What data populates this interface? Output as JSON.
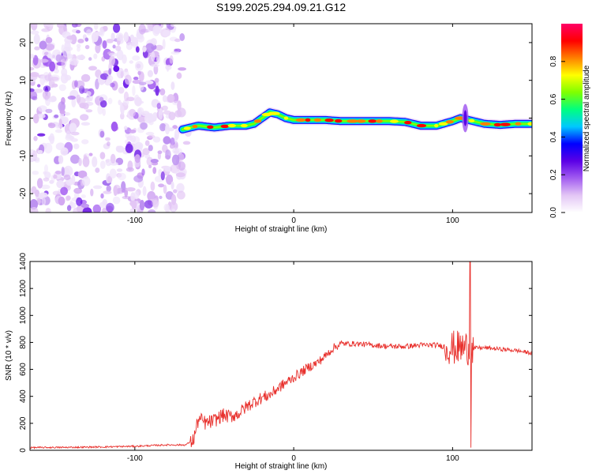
{
  "chart_data": [
    {
      "type": "heatmap",
      "title": "S199.2025.294.09.21.G12",
      "xlabel": "Height of straight line (km)",
      "ylabel": "Frequency (Hz)",
      "xlim": [
        -166,
        150
      ],
      "ylim": [
        -25,
        25
      ],
      "x_ticks": [
        "-100",
        "0",
        "100"
      ],
      "y_ticks": [
        "20",
        "10",
        "0",
        "-10",
        "-20"
      ],
      "colorbar": {
        "label": "Normalized spectral amplitude",
        "range": [
          0.0,
          1.0
        ],
        "ticks": [
          "0.0",
          "0.2",
          "0.4",
          "0.6",
          "0.8"
        ],
        "colors": [
          "#ffffff",
          "#e3c6f5",
          "#a25cf0",
          "#5b00e6",
          "#0000ff",
          "#00c8ff",
          "#00ff80",
          "#7fff00",
          "#ffff00",
          "#ff8000",
          "#ff0000",
          "#ff0066"
        ]
      },
      "noise_region_x": [
        -166,
        -70
      ],
      "ridge": {
        "x": [
          -70,
          -60,
          -50,
          -40,
          -30,
          -25,
          -20,
          -15,
          -10,
          -5,
          0,
          10,
          20,
          30,
          40,
          50,
          60,
          70,
          80,
          90,
          100,
          105,
          110,
          120,
          130,
          140,
          150
        ],
        "freq": [
          -3,
          -2,
          -2.5,
          -2,
          -2,
          -1.5,
          0,
          1.5,
          1,
          0,
          -0.5,
          -0.5,
          -0.5,
          -0.8,
          -0.8,
          -0.8,
          -0.8,
          -1,
          -2,
          -2,
          -0.8,
          0,
          -0.5,
          -1.5,
          -1.8,
          -1.5,
          -1.5
        ]
      }
    },
    {
      "type": "line",
      "title": "",
      "xlabel": "Height of straight line (km)",
      "ylabel": "SNR (10 * v/v)",
      "xlim": [
        -166,
        150
      ],
      "ylim": [
        0,
        1400
      ],
      "x_ticks": [
        "-100",
        "0",
        "100"
      ],
      "y_ticks": [
        "0",
        "200",
        "400",
        "600",
        "800",
        "1000",
        "1200",
        "1400"
      ],
      "line_color": "#e8302c",
      "series": [
        {
          "name": "",
          "x": [
            -166,
            -140,
            -120,
            -100,
            -80,
            -68,
            -63,
            -60,
            -55,
            -50,
            -45,
            -40,
            -35,
            -30,
            -25,
            -20,
            -15,
            -10,
            -5,
            0,
            5,
            10,
            15,
            20,
            25,
            30,
            40,
            50,
            60,
            70,
            80,
            90,
            95,
            100,
            105,
            110,
            112,
            115,
            120,
            130,
            140,
            150
          ],
          "y": [
            20,
            22,
            25,
            30,
            40,
            40,
            80,
            230,
            200,
            220,
            260,
            250,
            270,
            320,
            360,
            390,
            410,
            460,
            500,
            540,
            580,
            620,
            650,
            700,
            760,
            790,
            790,
            780,
            770,
            770,
            780,
            780,
            770,
            760,
            760,
            760,
            740,
            760,
            760,
            750,
            740,
            720
          ]
        }
      ]
    }
  ]
}
